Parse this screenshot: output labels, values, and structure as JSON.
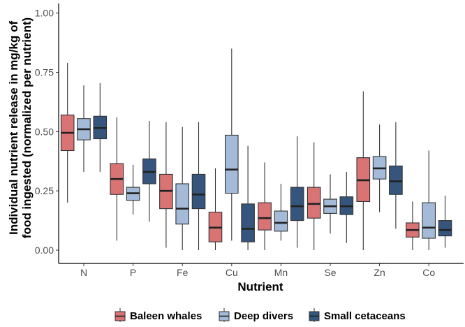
{
  "chart_data": {
    "type": "box",
    "xlabel": "Nutrient",
    "ylabel_lines": [
      "Individual nutrient release in mg/kg of",
      "food ingested (normalized per nutrient)"
    ],
    "ylim": [
      0,
      1
    ],
    "yticks": [
      0.0,
      0.25,
      0.5,
      0.75,
      1.0
    ],
    "ytick_labels": [
      "0.00",
      "0.25",
      "0.50",
      "0.75",
      "1.00"
    ],
    "categories": [
      "N",
      "P",
      "Fe",
      "Cu",
      "Mn",
      "Se",
      "Zn",
      "Co"
    ],
    "legend_position": "bottom",
    "series": [
      {
        "name": "Baleen whales",
        "color": "#d97374",
        "boxes": [
          {
            "min": 0.2,
            "q1": 0.42,
            "median": 0.495,
            "q3": 0.57,
            "max": 0.79
          },
          {
            "min": 0.04,
            "q1": 0.235,
            "median": 0.3,
            "q3": 0.365,
            "max": 0.56
          },
          {
            "min": 0.01,
            "q1": 0.175,
            "median": 0.25,
            "q3": 0.32,
            "max": 0.54
          },
          {
            "min": 0.0,
            "q1": 0.035,
            "median": 0.095,
            "q3": 0.16,
            "max": 0.345
          },
          {
            "min": 0.0,
            "q1": 0.085,
            "median": 0.135,
            "q3": 0.2,
            "max": 0.37
          },
          {
            "min": 0.0,
            "q1": 0.135,
            "median": 0.195,
            "q3": 0.265,
            "max": 0.455
          },
          {
            "min": 0.0,
            "q1": 0.205,
            "median": 0.295,
            "q3": 0.39,
            "max": 0.67
          },
          {
            "min": 0.0,
            "q1": 0.055,
            "median": 0.085,
            "q3": 0.115,
            "max": 0.205
          }
        ]
      },
      {
        "name": "Deep divers",
        "color": "#a3bbd8",
        "boxes": [
          {
            "min": 0.33,
            "q1": 0.465,
            "median": 0.51,
            "q3": 0.555,
            "max": 0.695
          },
          {
            "min": 0.15,
            "q1": 0.21,
            "median": 0.24,
            "q3": 0.265,
            "max": 0.36
          },
          {
            "min": 0.0,
            "q1": 0.11,
            "median": 0.175,
            "q3": 0.28,
            "max": 0.52
          },
          {
            "min": 0.04,
            "q1": 0.24,
            "median": 0.34,
            "q3": 0.485,
            "max": 0.85
          },
          {
            "min": 0.04,
            "q1": 0.08,
            "median": 0.115,
            "q3": 0.165,
            "max": 0.28
          },
          {
            "min": 0.07,
            "q1": 0.155,
            "median": 0.185,
            "q3": 0.215,
            "max": 0.32
          },
          {
            "min": 0.16,
            "q1": 0.3,
            "median": 0.345,
            "q3": 0.395,
            "max": 0.53
          },
          {
            "min": 0.0,
            "q1": 0.05,
            "median": 0.095,
            "q3": 0.2,
            "max": 0.42
          }
        ]
      },
      {
        "name": "Small cetaceans",
        "color": "#35557d",
        "boxes": [
          {
            "min": 0.33,
            "q1": 0.47,
            "median": 0.515,
            "q3": 0.565,
            "max": 0.705
          },
          {
            "min": 0.12,
            "q1": 0.28,
            "median": 0.33,
            "q3": 0.385,
            "max": 0.545
          },
          {
            "min": 0.0,
            "q1": 0.175,
            "median": 0.235,
            "q3": 0.32,
            "max": 0.54
          },
          {
            "min": 0.0,
            "q1": 0.035,
            "median": 0.09,
            "q3": 0.195,
            "max": 0.44
          },
          {
            "min": 0.01,
            "q1": 0.125,
            "median": 0.185,
            "q3": 0.265,
            "max": 0.48
          },
          {
            "min": 0.03,
            "q1": 0.15,
            "median": 0.185,
            "q3": 0.225,
            "max": 0.33
          },
          {
            "min": 0.09,
            "q1": 0.235,
            "median": 0.29,
            "q3": 0.355,
            "max": 0.54
          },
          {
            "min": 0.01,
            "q1": 0.06,
            "median": 0.085,
            "q3": 0.125,
            "max": 0.23
          }
        ]
      }
    ]
  }
}
